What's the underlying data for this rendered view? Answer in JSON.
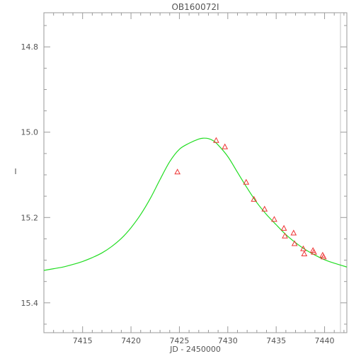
{
  "chart_data": {
    "type": "line",
    "title": "OB160072I",
    "xlabel": "JD - 2450000",
    "ylabel": "I",
    "xlim": [
      7411,
      7442.3
    ],
    "ylim": [
      15.47,
      14.72
    ],
    "y_inverted": true,
    "grid": false,
    "legend": "none",
    "xticks": [
      7415,
      7420,
      7425,
      7430,
      7435,
      7440
    ],
    "yticks": [
      14.8,
      15.0,
      15.2,
      15.4
    ],
    "ytick_labels": [
      "14.8",
      "15.0",
      "15.2",
      "15.4"
    ],
    "series": [
      {
        "kind": "model_curve",
        "color": "#22dd22",
        "x": [
          7411,
          7412,
          7413,
          7414,
          7415,
          7416,
          7417,
          7418,
          7419,
          7420,
          7421,
          7422,
          7423,
          7424,
          7425,
          7426,
          7427,
          7427.5,
          7428,
          7428.5,
          7429,
          7430,
          7431,
          7432,
          7433,
          7434,
          7435,
          7436,
          7437,
          7438,
          7439,
          7440,
          7441,
          7442.3
        ],
        "y": [
          15.324,
          15.32,
          15.316,
          15.31,
          15.303,
          15.294,
          15.283,
          15.268,
          15.249,
          15.224,
          15.193,
          15.155,
          15.111,
          15.069,
          15.04,
          15.026,
          15.016,
          15.014,
          15.015,
          15.02,
          15.03,
          15.057,
          15.094,
          15.131,
          15.165,
          15.193,
          15.217,
          15.24,
          15.259,
          15.275,
          15.288,
          15.299,
          15.307,
          15.316
        ]
      },
      {
        "kind": "observations",
        "marker": "triangle",
        "color": "#ee3333",
        "x": [
          7424.8,
          7428.8,
          7429.7,
          7431.9,
          7432.7,
          7433.8,
          7434.8,
          7435.8,
          7435.9,
          7436.8,
          7436.9,
          7437.8,
          7437.9,
          7438.8,
          7438.9,
          7439.8,
          7439.9
        ],
        "y": [
          15.093,
          15.019,
          15.034,
          15.117,
          15.157,
          15.18,
          15.204,
          15.225,
          15.243,
          15.236,
          15.261,
          15.273,
          15.285,
          15.277,
          15.281,
          15.288,
          15.292
        ]
      }
    ]
  }
}
